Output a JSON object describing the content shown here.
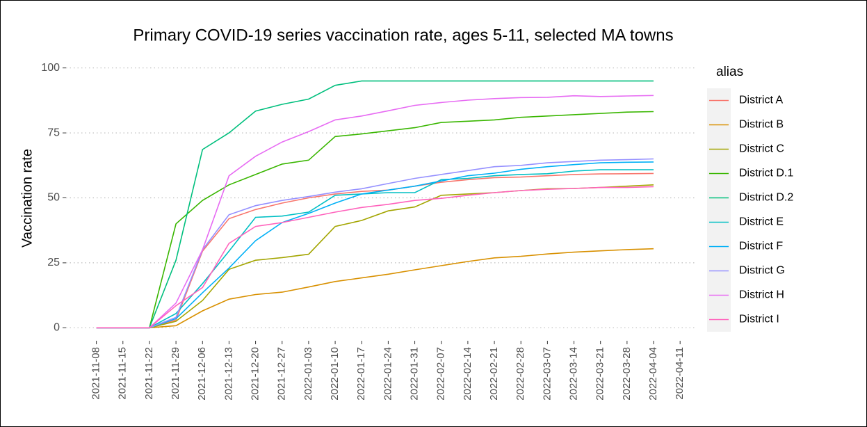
{
  "chart_data": {
    "type": "line",
    "title": "Primary COVID-19 series vaccination rate, ages 5-11, selected MA towns",
    "y_label": "Vaccination rate",
    "legend_title": "alias",
    "x": [
      "2021-11-08",
      "2021-11-15",
      "2021-11-22",
      "2021-11-29",
      "2021-12-06",
      "2021-12-13",
      "2021-12-20",
      "2021-12-27",
      "2022-01-03",
      "2022-01-10",
      "2022-01-17",
      "2022-01-24",
      "2022-01-31",
      "2022-02-07",
      "2022-02-14",
      "2022-02-21",
      "2022-02-28",
      "2022-03-07",
      "2022-03-14",
      "2022-03-21",
      "2022-03-28",
      "2022-04-04"
    ],
    "xlim": [
      "2021-10-31",
      "2022-04-15"
    ],
    "xticks": [
      "2021-11-08",
      "2021-11-15",
      "2021-11-22",
      "2021-11-29",
      "2021-12-06",
      "2021-12-13",
      "2021-12-20",
      "2021-12-27",
      "2022-01-03",
      "2022-01-10",
      "2022-01-17",
      "2022-01-24",
      "2022-01-31",
      "2022-02-07",
      "2022-02-14",
      "2022-02-21",
      "2022-02-28",
      "2022-03-07",
      "2022-03-14",
      "2022-03-21",
      "2022-03-28",
      "2022-04-04",
      "2022-04-11"
    ],
    "ylim": [
      -5,
      105
    ],
    "yticks": [
      0,
      25,
      50,
      75,
      100
    ],
    "grid": true,
    "legend": "right",
    "series": [
      {
        "name": "District A",
        "color": "#F8766D",
        "values": [
          0,
          0,
          0,
          3,
          29.5,
          42,
          45.5,
          48,
          50,
          51.5,
          52.5,
          53,
          54.5,
          56,
          57,
          57.8,
          58,
          58.5,
          59,
          59.2,
          59.3,
          59.4
        ]
      },
      {
        "name": "District B",
        "color": "#D89000",
        "values": [
          0,
          0,
          0,
          0.8,
          6.5,
          11,
          12.8,
          13.7,
          15.7,
          17.8,
          19.2,
          20.6,
          22.3,
          23.9,
          25.5,
          26.9,
          27.5,
          28.4,
          29.1,
          29.6,
          30.1,
          30.4
        ]
      },
      {
        "name": "District C",
        "color": "#A3A500",
        "values": [
          0,
          0,
          0,
          2.5,
          10.5,
          22.5,
          26,
          27,
          28.3,
          39,
          41.3,
          45,
          46.5,
          51,
          51.5,
          52,
          52.8,
          53.5,
          53.6,
          54,
          54.5,
          55
        ]
      },
      {
        "name": "District D.1",
        "color": "#39B600",
        "values": [
          0,
          0,
          0,
          40,
          49,
          55,
          59,
          63,
          64.5,
          73.6,
          74.6,
          75.8,
          77,
          79,
          79.5,
          80,
          81,
          81.5,
          82,
          82.5,
          83,
          83.2
        ]
      },
      {
        "name": "District D.2",
        "color": "#00BF7D",
        "values": [
          0,
          0,
          0,
          26,
          68.6,
          75,
          83.4,
          86,
          88,
          93.3,
          95,
          95,
          95,
          95,
          95,
          95,
          95,
          95,
          95,
          95,
          95,
          95
        ]
      },
      {
        "name": "District E",
        "color": "#00BFC4",
        "values": [
          0,
          0,
          0,
          5.5,
          17,
          29.5,
          42.5,
          43,
          44.5,
          51,
          51.5,
          52,
          52,
          57,
          57.5,
          58.5,
          59,
          59.3,
          60.3,
          60.8,
          60.8,
          60.8
        ]
      },
      {
        "name": "District F",
        "color": "#00B0F6",
        "values": [
          0,
          0,
          0,
          3.5,
          13.5,
          23,
          33.5,
          40.5,
          44,
          48,
          51.5,
          53,
          54.5,
          56.5,
          58.5,
          59.5,
          61,
          62,
          62.8,
          63.5,
          63.7,
          63.8
        ]
      },
      {
        "name": "District G",
        "color": "#9590FF",
        "values": [
          0,
          0,
          0,
          4,
          30,
          43.5,
          47,
          49,
          50.5,
          52.2,
          53.5,
          55.5,
          57.5,
          59,
          60.5,
          62,
          62.5,
          63.5,
          64,
          64.5,
          64.7,
          65
        ]
      },
      {
        "name": "District H",
        "color": "#E76BF3",
        "values": [
          0,
          0,
          0,
          9.5,
          30,
          58.5,
          66,
          71.5,
          75.5,
          80,
          81.5,
          83.5,
          85.6,
          86.7,
          87.6,
          88.2,
          88.6,
          88.7,
          89.3,
          89,
          89.2,
          89.4
        ]
      },
      {
        "name": "District I",
        "color": "#FF62BC",
        "values": [
          0,
          0,
          0,
          8.5,
          15.5,
          32.5,
          39,
          40.5,
          42.5,
          44.5,
          46.3,
          47.5,
          49,
          49.8,
          51,
          52,
          52.8,
          53.3,
          53.6,
          54,
          54,
          54.3
        ]
      }
    ]
  }
}
